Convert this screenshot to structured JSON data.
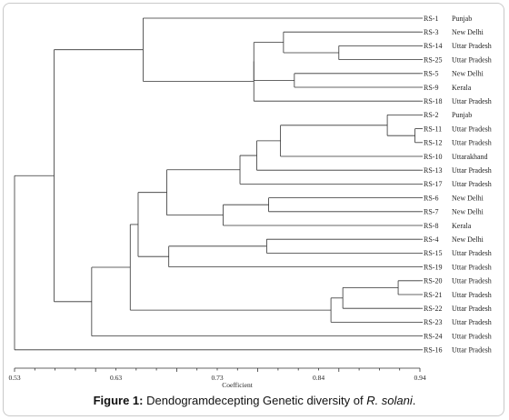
{
  "figure": {
    "caption_prefix": "Figure 1:",
    "caption_text": " Dendogramdecepting Genetic diversity of ",
    "caption_species": "R. solani",
    "caption_suffix": "."
  },
  "chart_data": {
    "type": "dendrogram",
    "axis_title": "Coefficient",
    "xlim": [
      0.53,
      0.94
    ],
    "ticks": [
      "0.53",
      "0.63",
      "0.73",
      "0.84",
      "0.94"
    ],
    "leaves": [
      {
        "id": "RS-1",
        "location": "Punjab"
      },
      {
        "id": "RS-3",
        "location": "New Delhi"
      },
      {
        "id": "RS-14",
        "location": "Uttar Pradesh"
      },
      {
        "id": "RS-25",
        "location": "Uttar Pradesh"
      },
      {
        "id": "RS-5",
        "location": "New Delhi"
      },
      {
        "id": "RS-9",
        "location": "Kerala"
      },
      {
        "id": "RS-18",
        "location": "Uttar Pradesh"
      },
      {
        "id": "RS-2",
        "location": "Punjab"
      },
      {
        "id": "RS-11",
        "location": "Uttar Pradesh"
      },
      {
        "id": "RS-12",
        "location": "Uttar Pradesh"
      },
      {
        "id": "RS-10",
        "location": "Uttarakhand"
      },
      {
        "id": "RS-13",
        "location": "Uttar Pradesh"
      },
      {
        "id": "RS-17",
        "location": "Uttar Pradesh"
      },
      {
        "id": "RS-6",
        "location": "New Delhi"
      },
      {
        "id": "RS-7",
        "location": "New Delhi"
      },
      {
        "id": "RS-8",
        "location": "Kerala"
      },
      {
        "id": "RS-4",
        "location": "New Delhi"
      },
      {
        "id": "RS-15",
        "location": "Uttar Pradesh"
      },
      {
        "id": "RS-19",
        "location": "Uttar Pradesh"
      },
      {
        "id": "RS-20",
        "location": "Uttar Pradesh"
      },
      {
        "id": "RS-21",
        "location": "Uttar Pradesh"
      },
      {
        "id": "RS-22",
        "location": "Uttar Pradesh"
      },
      {
        "id": "RS-23",
        "location": "Uttar Pradesh"
      },
      {
        "id": "RS-24",
        "location": "Uttar Pradesh"
      },
      {
        "id": "RS-16",
        "location": "Uttar Pradesh"
      }
    ],
    "merges": [
      {
        "a": "RS-14",
        "b": "RS-25",
        "height": 0.858
      },
      {
        "a": "RS-3",
        "b": "RS-14+RS-25",
        "height": 0.802
      },
      {
        "a": "RS-5",
        "b": "RS-9",
        "height": 0.813
      },
      {
        "a": "RS-3+RS-14+RS-25",
        "b": "RS-5+RS-9",
        "height": 0.772
      },
      {
        "a": "RS-3+RS-14+RS-25+RS-5+RS-9",
        "b": "RS-18",
        "height": 0.772
      },
      {
        "a": "RS-1",
        "b": "RS-3…RS-18",
        "height": 0.66
      },
      {
        "a": "RS-11",
        "b": "RS-12",
        "height": 0.935
      },
      {
        "a": "RS-2",
        "b": "RS-11+RS-12",
        "height": 0.907
      },
      {
        "a": "RS-2+RS-11+RS-12",
        "b": "RS-10",
        "height": 0.799
      },
      {
        "a": "RS-2…RS-10",
        "b": "RS-13",
        "height": 0.775
      },
      {
        "a": "RS-2…RS-13",
        "b": "RS-17",
        "height": 0.758
      },
      {
        "a": "RS-6",
        "b": "RS-7",
        "height": 0.787
      },
      {
        "a": "RS-6+RS-7",
        "b": "RS-8",
        "height": 0.741
      },
      {
        "a": "RS-2…RS-17",
        "b": "RS-6+RS-7+RS-8",
        "height": 0.684
      },
      {
        "a": "RS-4",
        "b": "RS-15",
        "height": 0.785
      },
      {
        "a": "RS-4+RS-15",
        "b": "RS-19",
        "height": 0.686
      },
      {
        "a": "RS-2…RS-8",
        "b": "RS-4+RS-15+RS-19",
        "height": 0.655
      },
      {
        "a": "RS-20",
        "b": "RS-21",
        "height": 0.918
      },
      {
        "a": "RS-20+RS-21",
        "b": "RS-22",
        "height": 0.862
      },
      {
        "a": "RS-20+RS-21+RS-22",
        "b": "RS-23",
        "height": 0.85
      },
      {
        "a": "RS-2…RS-19",
        "b": "RS-20…RS-23",
        "height": 0.647
      },
      {
        "a": "RS-2…RS-23",
        "b": "RS-24",
        "height": 0.608
      },
      {
        "a": "RS-1…RS-18",
        "b": "RS-2…RS-24",
        "height": 0.57
      },
      {
        "a": "RS-1…RS-24",
        "b": "RS-16",
        "height": 0.53
      }
    ]
  }
}
